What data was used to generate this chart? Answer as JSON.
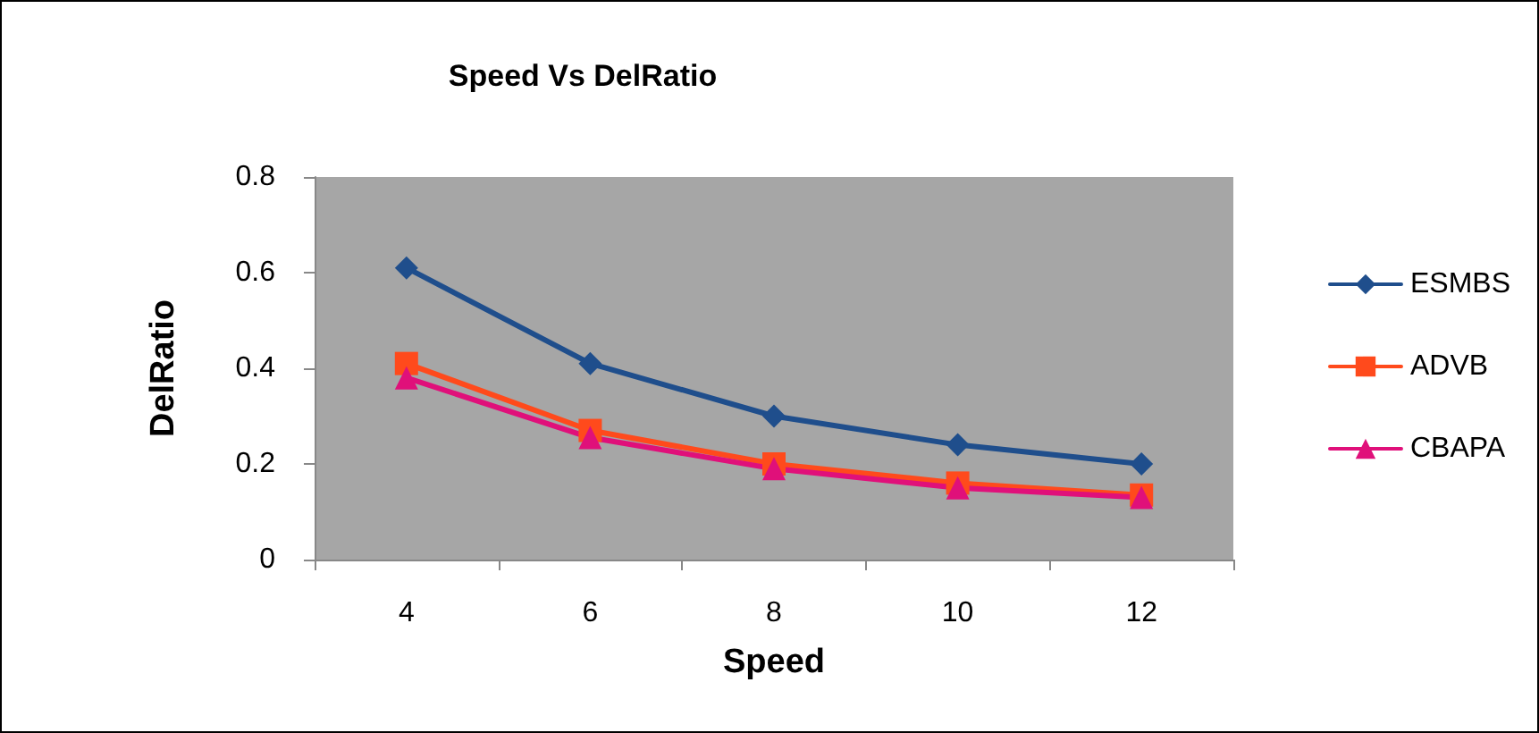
{
  "chart_data": {
    "type": "line",
    "title": "Speed Vs DelRatio",
    "xlabel": "Speed",
    "ylabel": "DelRatio",
    "categories": [
      "4",
      "6",
      "8",
      "10",
      "12"
    ],
    "series": [
      {
        "name": "ESMBS",
        "color": "#1f4e8c",
        "marker": "diamond",
        "values": [
          0.61,
          0.41,
          0.3,
          0.24,
          0.2
        ]
      },
      {
        "name": "ADVB",
        "color": "#ff4a1c",
        "marker": "square",
        "values": [
          0.41,
          0.27,
          0.2,
          0.16,
          0.135
        ]
      },
      {
        "name": "CBAPA",
        "color": "#e0107a",
        "marker": "triangle",
        "values": [
          0.38,
          0.255,
          0.19,
          0.15,
          0.13
        ]
      }
    ],
    "ylim": [
      0,
      0.8
    ],
    "yticks": [
      0,
      0.2,
      0.4,
      0.6,
      0.8
    ],
    "grid": false,
    "legend": "right"
  }
}
